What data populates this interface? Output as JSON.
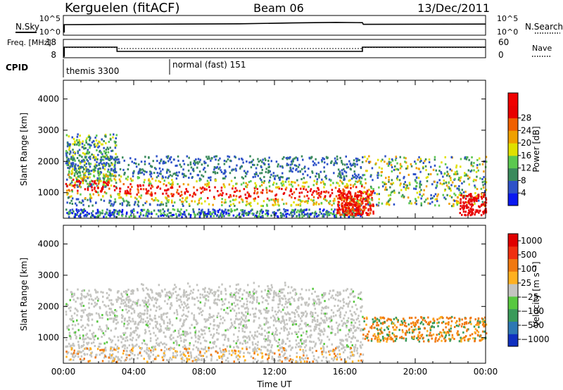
{
  "header": {
    "station": "Kerguelen (fitACF)",
    "beam": "Beam 06",
    "date": "13/Dec/2011"
  },
  "chart_data": [
    {
      "type": "line",
      "panel": "sky-search",
      "left_label": "N.Sky",
      "right_label": "N.Search",
      "left_ticks": [
        "10^5",
        "10^0"
      ],
      "right_ticks": [
        "10^5",
        "10^0"
      ],
      "xlim": [
        "00:00",
        "24:00"
      ],
      "series": [
        {
          "x": [
            0.0,
            0.05,
            0.05,
            3.05,
            3.05,
            10.0,
            13.0,
            15.5,
            17.0,
            17.05,
            24.0
          ],
          "y": [
            0.9,
            0.9,
            3.5,
            3.6,
            3.6,
            3.8,
            4.1,
            4.3,
            4.2,
            3.6,
            3.7
          ]
        }
      ]
    },
    {
      "type": "line",
      "panel": "frequency-nave",
      "left_label": "Freq. [MHz]",
      "right_label": "Nave",
      "left_ticks": [
        18,
        8
      ],
      "right_ticks": [
        60,
        0
      ],
      "ylim_left": [
        8,
        18
      ],
      "ylim_right": [
        0,
        60
      ],
      "xlim": [
        "00:00",
        "24:00"
      ],
      "series": [
        {
          "x": [
            0.0,
            0.05,
            0.05,
            3.05,
            3.05,
            17.0,
            17.0,
            24.0
          ],
          "y": [
            8,
            8,
            14.5,
            14.5,
            11.5,
            11.5,
            14.5,
            14.5
          ]
        },
        {
          "x": [
            0.0,
            3.05,
            3.05,
            17.0,
            17.0,
            24.0
          ],
          "y": [
            38,
            38,
            33,
            33,
            38,
            38
          ]
        }
      ]
    },
    {
      "type": "table",
      "panel": "cpid",
      "label": "CPID",
      "modes": [
        {
          "start": "00:00",
          "name": "themis 3300"
        },
        {
          "start": "06:00",
          "name": "normal (fast) 151"
        }
      ]
    },
    {
      "type": "heatmap",
      "panel": "power",
      "ylabel": "Slant Range [km]",
      "xlabel": "",
      "yticks": [
        1000,
        2000,
        3000,
        4000
      ],
      "ylim": [
        180,
        4600
      ],
      "xticks": [
        "00:00",
        "04:00",
        "08:00",
        "12:00",
        "16:00",
        "20:00",
        "00:00"
      ],
      "xlim": [
        0,
        24
      ],
      "colorbar": {
        "label": "Power [dB]",
        "ticks": [
          4,
          8,
          12,
          16,
          20,
          24,
          28
        ],
        "colors": [
          "#0a18f0",
          "#2e52c8",
          "#3a8a5c",
          "#5cc850",
          "#e0e000",
          "#f0a000",
          "#f06000",
          "#e80000",
          "#f00000"
        ]
      }
    },
    {
      "type": "heatmap",
      "panel": "velocity",
      "ylabel": "Slant Range [km]",
      "xlabel": "Time UT",
      "yticks": [
        1000,
        2000,
        3000,
        4000
      ],
      "ylim": [
        180,
        4600
      ],
      "xticks": [
        "00:00",
        "04:00",
        "08:00",
        "12:00",
        "16:00",
        "20:00",
        "00:00"
      ],
      "xlim": [
        0,
        24
      ],
      "colorbar": {
        "label": "Velocity [m s⁻¹]",
        "ticks": [
          "1000",
          "500",
          "100",
          "25",
          "−25",
          "−100",
          "−500",
          "−1000"
        ],
        "colors": [
          "#1030c0",
          "#2e78b4",
          "#3a9a5a",
          "#58c840",
          "#c4c4c0",
          "#ffb020",
          "#f07810",
          "#f03010",
          "#e00000"
        ]
      }
    }
  ]
}
